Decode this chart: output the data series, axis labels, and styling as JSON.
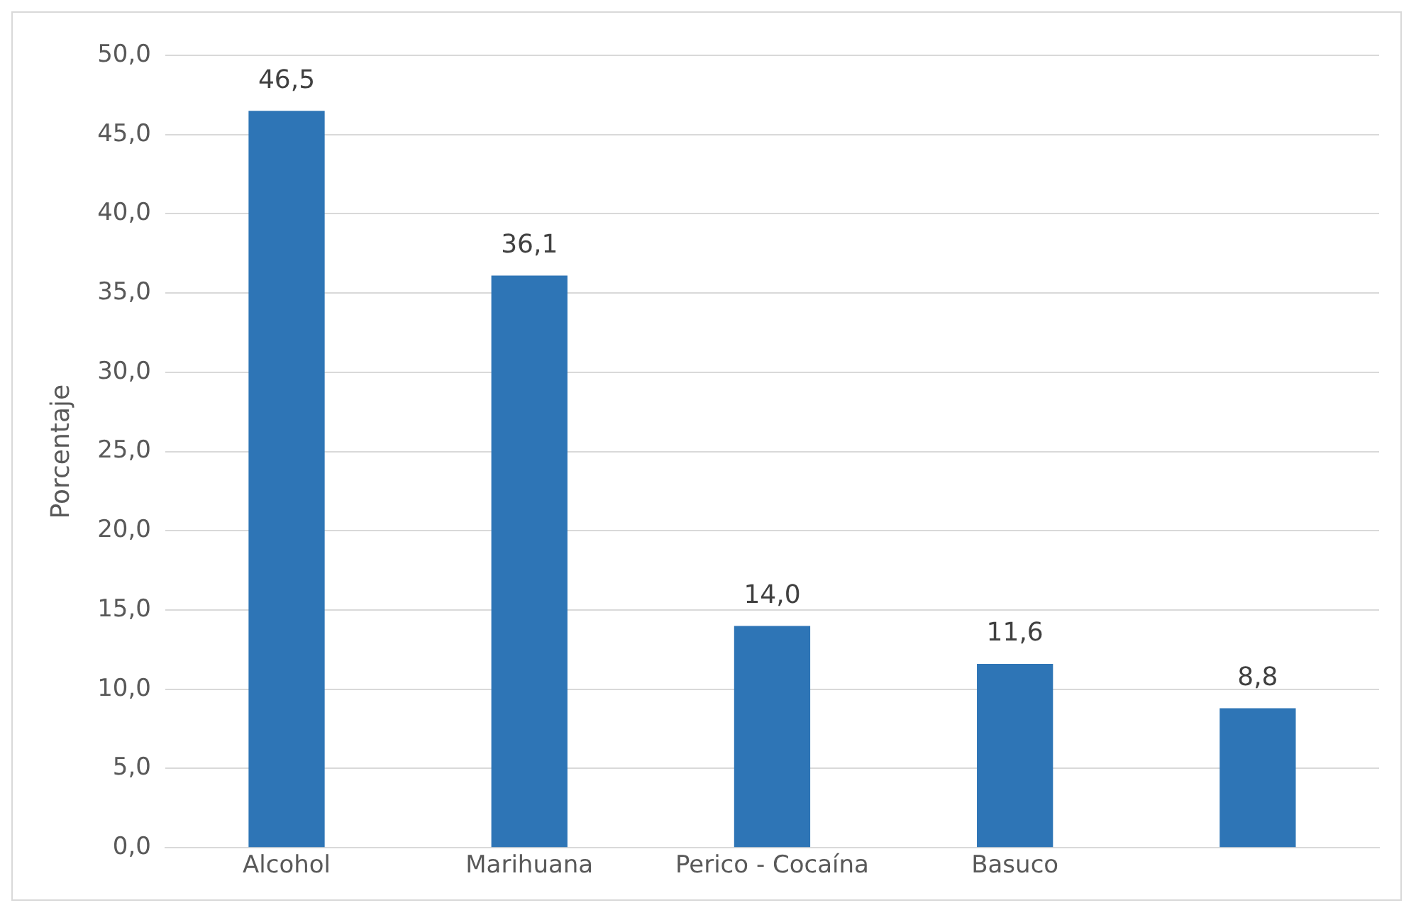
{
  "chart_data": {
    "type": "bar",
    "ylabel": "Porcentaje",
    "categories": [
      "Alcohol",
      "Marihuana",
      "Perico - Cocaína",
      "Basuco",
      null
    ],
    "values": [
      46.5,
      36.1,
      14.0,
      11.6,
      8.8
    ],
    "value_labels": [
      "46,5",
      "36,1",
      "14,0",
      "11,6",
      "8,8"
    ],
    "color": "#2e75b6",
    "ylim": [
      0,
      50
    ],
    "yticks": [
      {
        "value": 0,
        "label": "0,0"
      },
      {
        "value": 5,
        "label": "5,0"
      },
      {
        "value": 10,
        "label": "10,0"
      },
      {
        "value": 15,
        "label": "15,0"
      },
      {
        "value": 20,
        "label": "20,0"
      },
      {
        "value": 25,
        "label": "25,0"
      },
      {
        "value": 30,
        "label": "30,0"
      },
      {
        "value": 35,
        "label": "35,0"
      },
      {
        "value": 40,
        "label": "40,0"
      },
      {
        "value": 45,
        "label": "45,0"
      },
      {
        "value": 50,
        "label": "50,0"
      }
    ],
    "grid": "y",
    "legend": false
  }
}
